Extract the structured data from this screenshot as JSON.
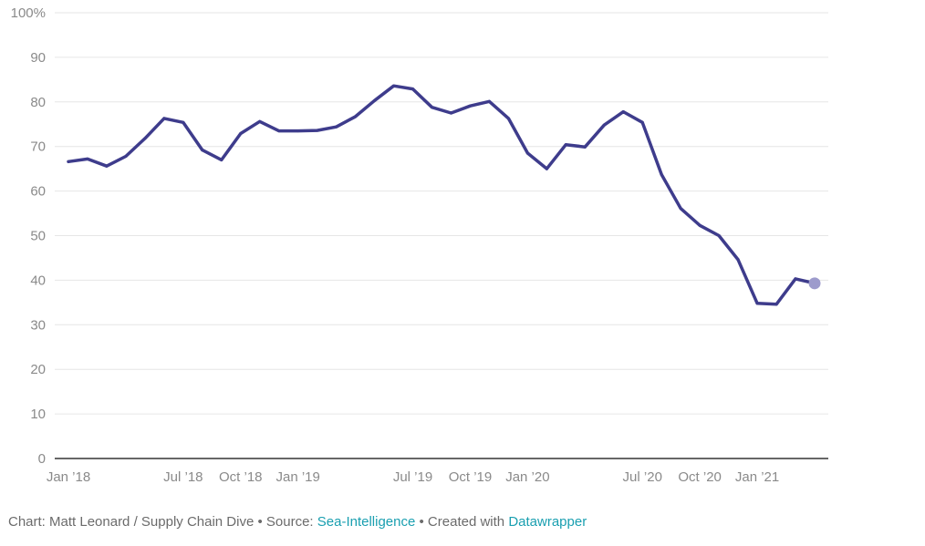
{
  "chart_data": {
    "type": "line",
    "title": "",
    "xlabel": "",
    "ylabel": "",
    "ylim": [
      0,
      100
    ],
    "y_ticks": [
      {
        "value": 0,
        "label": "0"
      },
      {
        "value": 10,
        "label": "10"
      },
      {
        "value": 20,
        "label": "20"
      },
      {
        "value": 30,
        "label": "30"
      },
      {
        "value": 40,
        "label": "40"
      },
      {
        "value": 50,
        "label": "50"
      },
      {
        "value": 60,
        "label": "60"
      },
      {
        "value": 70,
        "label": "70"
      },
      {
        "value": 80,
        "label": "80"
      },
      {
        "value": 90,
        "label": "90"
      },
      {
        "value": 100,
        "label": "100%"
      }
    ],
    "x_ticks": [
      {
        "date": "2018-01",
        "label": "Jan ’18"
      },
      {
        "date": "2018-07",
        "label": "Jul ’18"
      },
      {
        "date": "2018-10",
        "label": "Oct ’18"
      },
      {
        "date": "2019-01",
        "label": "Jan ’19"
      },
      {
        "date": "2019-07",
        "label": "Jul ’19"
      },
      {
        "date": "2019-10",
        "label": "Oct ’19"
      },
      {
        "date": "2020-01",
        "label": "Jan ’20"
      },
      {
        "date": "2020-07",
        "label": "Jul ’20"
      },
      {
        "date": "2020-10",
        "label": "Oct ’20"
      },
      {
        "date": "2021-01",
        "label": "Jan ’21"
      }
    ],
    "grid": true,
    "colors": {
      "line": "#3e3c8c",
      "last_point": "#9d9bcc",
      "grid": "#e6e6e6",
      "link": "#1a9fb0"
    },
    "series": [
      {
        "x": [
          "2018-01",
          "2018-02",
          "2018-03",
          "2018-04",
          "2018-05",
          "2018-06",
          "2018-07",
          "2018-08",
          "2018-09",
          "2018-10",
          "2018-11",
          "2018-12",
          "2019-01",
          "2019-02",
          "2019-03",
          "2019-04",
          "2019-05",
          "2019-06",
          "2019-07",
          "2019-08",
          "2019-09",
          "2019-10",
          "2019-11",
          "2019-12",
          "2020-01",
          "2020-02",
          "2020-03",
          "2020-04",
          "2020-05",
          "2020-06",
          "2020-07",
          "2020-08",
          "2020-09",
          "2020-10",
          "2020-11",
          "2020-12",
          "2021-01",
          "2021-02",
          "2021-03",
          "2021-04"
        ],
        "values": [
          66.6,
          67.2,
          65.6,
          67.8,
          71.8,
          76.3,
          75.4,
          69.2,
          67.0,
          72.9,
          75.6,
          73.5,
          73.5,
          73.6,
          74.4,
          76.7,
          80.3,
          83.6,
          82.9,
          78.8,
          77.5,
          79.1,
          80.1,
          76.3,
          68.5,
          65.0,
          70.4,
          69.9,
          74.8,
          77.8,
          75.4,
          63.7,
          56.1,
          52.3,
          50.0,
          44.6,
          34.8,
          34.6,
          40.3,
          39.3
        ]
      }
    ]
  },
  "footer": {
    "prefix": "Chart: Matt Leonard / Supply Chain Dive • Source: ",
    "source_link": "Sea-Intelligence",
    "middle": " • Created with ",
    "tool_link": "Datawrapper"
  }
}
